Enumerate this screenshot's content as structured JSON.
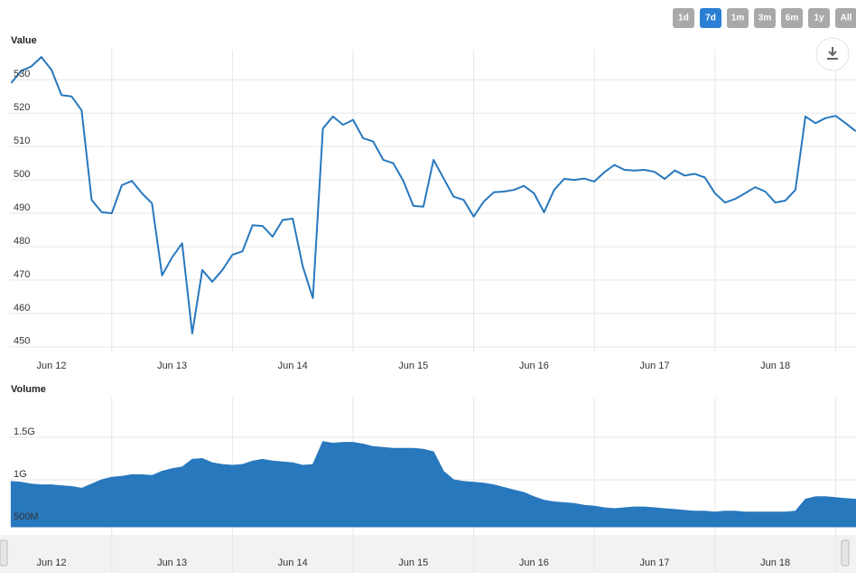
{
  "range_buttons": {
    "options": [
      "1d",
      "7d",
      "1m",
      "3m",
      "6m",
      "1y",
      "All"
    ],
    "selected": 1
  },
  "chart_data": [
    {
      "type": "line",
      "title": "Value",
      "color": "#2878be",
      "x": [
        -8,
        -6,
        -4,
        -2,
        0,
        2,
        4,
        6,
        8,
        10,
        12,
        14,
        16,
        18,
        20,
        22,
        24,
        26,
        28,
        30,
        32,
        34,
        36,
        38,
        40,
        42,
        44,
        46,
        48,
        50,
        52,
        54,
        56,
        58,
        60,
        62,
        64,
        66,
        68,
        70,
        72,
        74,
        76,
        78,
        80,
        82,
        84,
        86,
        88,
        90,
        92,
        94,
        96,
        98,
        100,
        102,
        104,
        106,
        108,
        110,
        112,
        114,
        116,
        118,
        120,
        122,
        124,
        126,
        128,
        130,
        132,
        134,
        136,
        138,
        140,
        142,
        144,
        146,
        148,
        150,
        152,
        154,
        156,
        158,
        160
      ],
      "values": [
        529,
        532.7,
        534,
        536.8,
        533,
        525.4,
        525,
        520.8,
        494,
        490.3,
        490,
        498.4,
        499.7,
        496,
        493,
        471.4,
        476.8,
        481,
        454,
        473,
        469.5,
        473,
        477.6,
        478.6,
        486.4,
        486.2,
        483,
        488,
        488.4,
        474.1,
        464.6,
        515.4,
        519,
        516.5,
        518,
        512.5,
        511.5,
        506,
        505,
        499.7,
        492.2,
        492,
        506,
        500.5,
        495,
        494,
        489,
        493.5,
        496.3,
        496.5,
        497,
        498.2,
        496,
        490.3,
        497,
        500.3,
        500,
        500.4,
        499.5,
        502.3,
        504.5,
        503,
        502.8,
        503,
        502.4,
        500.3,
        502.8,
        501.3,
        501.8,
        500.7,
        496,
        493.2,
        494.3,
        496,
        497.8,
        496.5,
        493.2,
        493.8,
        497,
        519,
        517,
        518.5,
        519.2,
        517,
        514.6
      ],
      "xlim": [
        -8.44,
        160.06
      ],
      "xticks": [
        {
          "value": 0,
          "label": "Jun 12"
        },
        {
          "value": 24,
          "label": "Jun 13"
        },
        {
          "value": 48,
          "label": "Jun 14"
        },
        {
          "value": 72,
          "label": "Jun 15"
        },
        {
          "value": 96,
          "label": "Jun 16"
        },
        {
          "value": 120,
          "label": "Jun 17"
        },
        {
          "value": 144,
          "label": "Jun 18"
        }
      ],
      "xgrid": [
        12,
        36,
        60,
        84,
        108,
        132,
        156
      ],
      "ylim": [
        448.6,
        539
      ],
      "yticks": [
        450,
        460,
        470,
        480,
        490,
        500,
        510,
        520,
        530
      ],
      "grid": true
    },
    {
      "type": "area",
      "title": "Volume",
      "color": "#2878be",
      "x": [
        -8,
        -6,
        -4,
        -2,
        0,
        2,
        4,
        6,
        8,
        10,
        12,
        14,
        16,
        18,
        20,
        22,
        24,
        26,
        28,
        30,
        32,
        34,
        36,
        38,
        40,
        42,
        44,
        46,
        48,
        50,
        52,
        54,
        56,
        58,
        60,
        62,
        64,
        66,
        68,
        70,
        72,
        74,
        76,
        78,
        80,
        82,
        84,
        86,
        88,
        90,
        92,
        94,
        96,
        98,
        100,
        102,
        104,
        106,
        108,
        110,
        112,
        114,
        116,
        118,
        120,
        122,
        124,
        126,
        128,
        130,
        132,
        134,
        136,
        138,
        140,
        142,
        144,
        146,
        148,
        150,
        152,
        154,
        156,
        158,
        160
      ],
      "values": [
        980000000,
        970000000,
        950000000,
        940000000,
        940000000,
        930000000,
        920000000,
        900000000,
        950000000,
        1000000000,
        1030000000,
        1040000000,
        1060000000,
        1060000000,
        1050000000,
        1100000000,
        1130000000,
        1150000000,
        1240000000,
        1250000000,
        1200000000,
        1180000000,
        1170000000,
        1180000000,
        1220000000,
        1240000000,
        1220000000,
        1210000000,
        1200000000,
        1170000000,
        1180000000,
        1450000000,
        1430000000,
        1440000000,
        1440000000,
        1420000000,
        1390000000,
        1380000000,
        1370000000,
        1370000000,
        1370000000,
        1360000000,
        1330000000,
        1100000000,
        1000000000,
        980000000,
        970000000,
        960000000,
        940000000,
        910000000,
        880000000,
        850000000,
        800000000,
        760000000,
        740000000,
        730000000,
        720000000,
        700000000,
        690000000,
        670000000,
        660000000,
        670000000,
        680000000,
        680000000,
        670000000,
        660000000,
        650000000,
        640000000,
        630000000,
        630000000,
        620000000,
        630000000,
        630000000,
        620000000,
        620000000,
        620000000,
        620000000,
        620000000,
        630000000,
        770000000,
        800000000,
        800000000,
        790000000,
        780000000,
        770000000
      ],
      "xlim": [
        -8.44,
        160.06
      ],
      "xticks": [
        {
          "value": 0,
          "label": "Jun 12"
        },
        {
          "value": 24,
          "label": "Jun 13"
        },
        {
          "value": 48,
          "label": "Jun 14"
        },
        {
          "value": 72,
          "label": "Jun 15"
        },
        {
          "value": 96,
          "label": "Jun 16"
        },
        {
          "value": 120,
          "label": "Jun 17"
        },
        {
          "value": 144,
          "label": "Jun 18"
        }
      ],
      "xgrid": [
        12,
        36,
        60,
        84,
        108,
        132,
        156
      ],
      "ylim": [
        447000000,
        1968000000
      ],
      "yticks": [
        {
          "value": 500000000,
          "label": "500M"
        },
        {
          "value": 1000000000,
          "label": "1G"
        },
        {
          "value": 1500000000,
          "label": "1.5G"
        }
      ],
      "grid": true
    }
  ]
}
